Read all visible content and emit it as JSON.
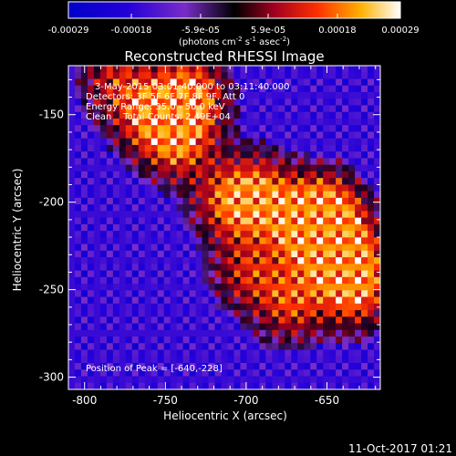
{
  "chart_data": {
    "type": "heatmap",
    "title": "Reconstructed RHESSI Image",
    "xlabel": "Heliocentric X (arcsec)",
    "ylabel": "Heliocentric Y (arcsec)",
    "xlim": [
      -810,
      -617
    ],
    "ylim": [
      -307,
      -122
    ],
    "x_ticks": [
      "-800",
      "-750",
      "-700",
      "-650"
    ],
    "x_tick_values": [
      -800,
      -750,
      -700,
      -650
    ],
    "y_ticks": [
      "-150",
      "-200",
      "-250",
      "-300"
    ],
    "y_tick_values": [
      -150,
      -200,
      -250,
      -300
    ],
    "colorbar": {
      "tick_labels": [
        "-0.00029",
        "-0.00018",
        "-5.9e-05",
        "5.9e-05",
        "0.00018",
        "0.00029"
      ],
      "tick_values": [
        -0.00029,
        -0.00018,
        -5.9e-05,
        5.9e-05,
        0.00018,
        0.00029
      ],
      "range": [
        -0.00029,
        0.00029
      ],
      "units_base": "(photons cm",
      "units_exp1": "-2",
      "units_mid1": " s",
      "units_exp2": "-1",
      "units_mid2": " asec",
      "units_exp3": "-2",
      "units_end": ")"
    },
    "annotations": {
      "time_range": "3-May-2015 03:01:40.000 to 03:11:40.000",
      "detectors": "Detectors: 3F 5F 6F 7F 8F 9F, Att 0",
      "energy_range": "Energy Range: 35.0 - 50.0 keV",
      "clean": "Clean    Total Counts: 2.49E+04",
      "peak": "Position of Peak = [-640,-228]"
    },
    "peak_position": [
      -640,
      -228
    ],
    "bright_regions": [
      {
        "x": -735,
        "y": -138,
        "level": 0.96
      },
      {
        "x": -742,
        "y": -165,
        "level": 0.85
      },
      {
        "x": -762,
        "y": -150,
        "level": 0.7
      },
      {
        "x": -710,
        "y": -200,
        "level": 0.78
      },
      {
        "x": -690,
        "y": -195,
        "level": 0.7
      },
      {
        "x": -640,
        "y": -228,
        "level": 1.0
      },
      {
        "x": -650,
        "y": -205,
        "level": 0.92
      },
      {
        "x": -632,
        "y": -250,
        "level": 0.88
      },
      {
        "x": -665,
        "y": -215,
        "level": 0.8
      },
      {
        "x": -672,
        "y": -258,
        "level": 0.72
      },
      {
        "x": -700,
        "y": -240,
        "level": 0.6
      },
      {
        "x": -782,
        "y": -128,
        "level": 0.55
      }
    ],
    "grid": false,
    "legend": "colorbar top"
  },
  "footer": {
    "date": "11-Oct-2017 01:21"
  }
}
